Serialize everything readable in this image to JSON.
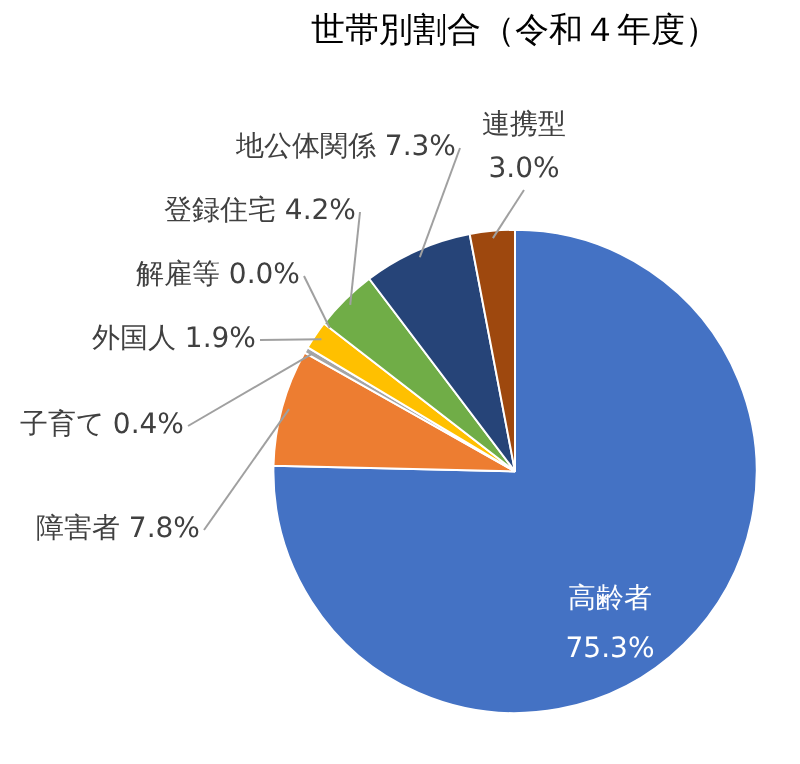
{
  "chart_data": {
    "type": "pie",
    "title": "世帯別割合（令和４年度）",
    "categories": [
      "高齢者",
      "障害者",
      "子育て",
      "外国人",
      "解雇等",
      "登録住宅",
      "地公体関係",
      "連携型"
    ],
    "values": [
      75.3,
      7.8,
      0.4,
      1.9,
      0.0,
      4.2,
      7.3,
      3.0
    ],
    "value_labels": [
      "75.3%",
      "7.8%",
      "0.4%",
      "1.9%",
      "0.0%",
      "4.2%",
      "7.3%",
      "3.0%"
    ],
    "colors": [
      "#4472c4",
      "#ed7d31",
      "#a5a5a5",
      "#ffc000",
      "#5b9bd5",
      "#70ad47",
      "#264478",
      "#9e480e"
    ],
    "legend": false
  }
}
